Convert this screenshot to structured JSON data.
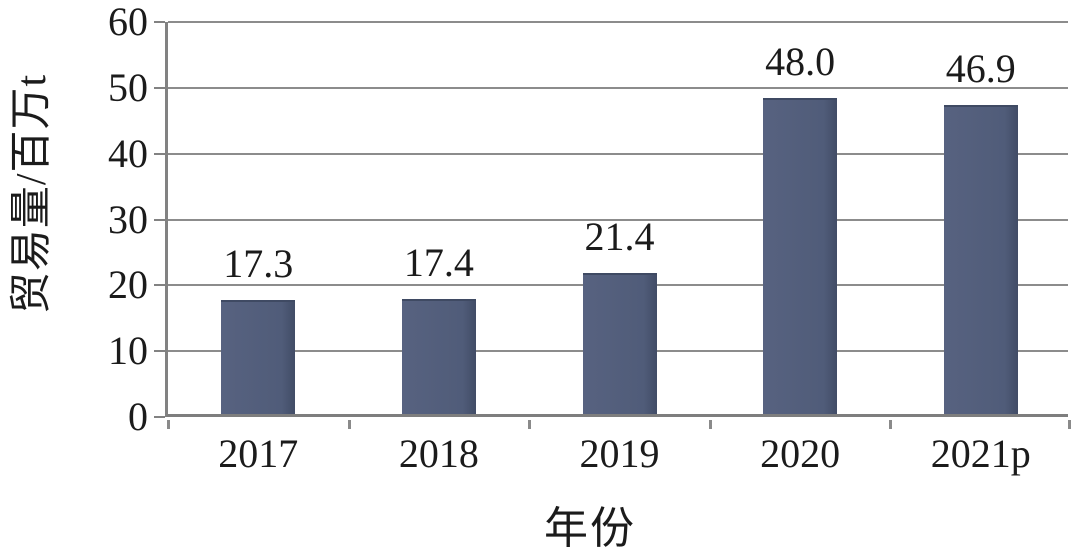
{
  "chart_data": {
    "type": "bar",
    "categories": [
      "2017",
      "2018",
      "2019",
      "2020",
      "2021p"
    ],
    "values": [
      17.3,
      17.4,
      21.4,
      48.0,
      46.9
    ],
    "value_labels": [
      "17.3",
      "17.4",
      "21.4",
      "48.0",
      "46.9"
    ],
    "title": "",
    "xlabel": "年份",
    "ylabel": "贸易量/百万t",
    "ylim": [
      0,
      60
    ],
    "yticks": [
      0,
      10,
      20,
      30,
      40,
      50,
      60
    ],
    "ytick_labels": [
      "0",
      "10",
      "20",
      "30",
      "40",
      "50",
      "60"
    ],
    "grid": "horizontal",
    "legend": "none",
    "colors": {
      "bar": "#4f5a76",
      "gridline": "#8c8c8c",
      "axis": "#828282",
      "text": "#1b1b1b",
      "background": "#ffffff"
    }
  }
}
